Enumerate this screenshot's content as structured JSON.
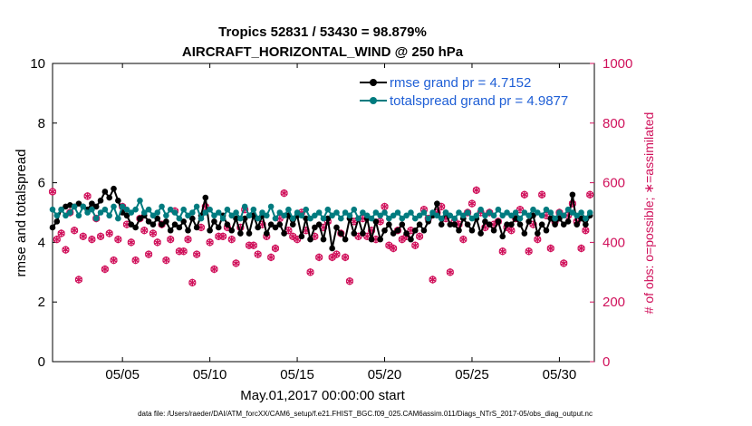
{
  "chart_data": {
    "type": "line",
    "title_line1": "Tropics 52831 / 53430 = 98.879%",
    "title_line2": "AIRCRAFT_HORIZONTAL_WIND @ 250 hPa",
    "xlabel": "May.01,2017 00:00:00 start",
    "ylabel": "rmse and totalspread",
    "ylabel_right": "# of obs: o=possible; ∗=assimilated",
    "x_tick_labels": [
      "05/05",
      "05/10",
      "05/15",
      "05/20",
      "05/25",
      "05/30"
    ],
    "x_tick_days": [
      5,
      10,
      15,
      20,
      25,
      30
    ],
    "xlim": [
      1,
      32
    ],
    "ylim": [
      0,
      10
    ],
    "y_ticks": [
      "0",
      "2",
      "4",
      "6",
      "8",
      "10"
    ],
    "y_right_lim": [
      0,
      1000
    ],
    "y_right_ticks": [
      "0",
      "200",
      "400",
      "600",
      "800",
      "1000"
    ],
    "legend": {
      "rmse_label": "rmse grand pr = 4.7152",
      "spread_label": "totalspread grand pr = 4.9877",
      "placement": "top-right"
    },
    "colors": {
      "rmse": "#000000",
      "spread": "#007b7f",
      "obs": "#d0115b",
      "legend_text": "#1f5fd6"
    },
    "series": [
      {
        "name": "rmse",
        "x": [
          1.0,
          1.25,
          1.5,
          1.75,
          2.0,
          2.25,
          2.5,
          2.75,
          3.0,
          3.25,
          3.5,
          3.75,
          4.0,
          4.25,
          4.5,
          4.75,
          5.0,
          5.25,
          5.5,
          5.75,
          6.0,
          6.25,
          6.5,
          6.75,
          7.0,
          7.25,
          7.5,
          7.75,
          8.0,
          8.25,
          8.5,
          8.75,
          9.0,
          9.25,
          9.5,
          9.75,
          10.0,
          10.25,
          10.5,
          10.75,
          11.0,
          11.25,
          11.5,
          11.75,
          12.0,
          12.25,
          12.5,
          12.75,
          13.0,
          13.25,
          13.5,
          13.75,
          14.0,
          14.25,
          14.5,
          14.75,
          15.0,
          15.25,
          15.5,
          15.75,
          16.0,
          16.25,
          16.5,
          16.75,
          17.0,
          17.25,
          17.5,
          17.75,
          18.0,
          18.25,
          18.5,
          18.75,
          19.0,
          19.25,
          19.5,
          19.75,
          20.0,
          20.25,
          20.5,
          20.75,
          21.0,
          21.25,
          21.5,
          21.75,
          22.0,
          22.25,
          22.5,
          22.75,
          23.0,
          23.25,
          23.5,
          23.75,
          24.0,
          24.25,
          24.5,
          24.75,
          25.0,
          25.25,
          25.5,
          25.75,
          26.0,
          26.25,
          26.5,
          26.75,
          27.0,
          27.25,
          27.5,
          27.75,
          28.0,
          28.25,
          28.5,
          28.75,
          29.0,
          29.25,
          29.5,
          29.75,
          30.0,
          30.25,
          30.5,
          30.75,
          31.0,
          31.25,
          31.5,
          31.75
        ],
        "values": [
          4.5,
          4.7,
          5.1,
          5.2,
          5.25,
          5.2,
          5.3,
          5.2,
          5.1,
          5.3,
          5.2,
          5.4,
          5.7,
          5.5,
          5.8,
          5.4,
          5.0,
          4.9,
          4.6,
          4.5,
          4.8,
          4.9,
          4.7,
          4.6,
          4.8,
          4.6,
          4.7,
          4.4,
          4.6,
          4.5,
          4.7,
          4.4,
          4.8,
          4.5,
          4.9,
          5.5,
          4.4,
          4.7,
          4.5,
          4.9,
          4.6,
          4.4,
          4.8,
          4.3,
          4.8,
          4.3,
          4.9,
          4.5,
          4.9,
          4.3,
          4.6,
          4.5,
          4.6,
          4.3,
          4.9,
          4.6,
          4.9,
          4.2,
          4.8,
          4.1,
          4.5,
          4.6,
          4.1,
          4.8,
          3.8,
          4.5,
          4.3,
          4.1,
          4.8,
          4.3,
          4.8,
          4.3,
          4.8,
          4.1,
          4.7,
          4.1,
          4.4,
          4.6,
          4.3,
          4.4,
          4.6,
          4.3,
          4.1,
          4.4,
          4.6,
          4.4,
          4.7,
          4.9,
          5.3,
          4.6,
          5.0,
          4.6,
          4.6,
          4.4,
          4.8,
          4.6,
          4.4,
          4.8,
          4.3,
          4.7,
          4.6,
          4.4,
          4.7,
          4.2,
          4.6,
          4.6,
          4.8,
          4.6,
          4.3,
          4.7,
          4.9,
          4.3,
          4.6,
          4.4,
          4.8,
          4.6,
          4.8,
          4.6,
          4.7,
          5.6,
          4.6,
          4.8,
          4.6,
          4.9
        ]
      },
      {
        "name": "totalspread",
        "x": [
          1.0,
          1.25,
          1.5,
          1.75,
          2.0,
          2.25,
          2.5,
          2.75,
          3.0,
          3.25,
          3.5,
          3.75,
          4.0,
          4.25,
          4.5,
          4.75,
          5.0,
          5.25,
          5.5,
          5.75,
          6.0,
          6.25,
          6.5,
          6.75,
          7.0,
          7.25,
          7.5,
          7.75,
          8.0,
          8.25,
          8.5,
          8.75,
          9.0,
          9.25,
          9.5,
          9.75,
          10.0,
          10.25,
          10.5,
          10.75,
          11.0,
          11.25,
          11.5,
          11.75,
          12.0,
          12.25,
          12.5,
          12.75,
          13.0,
          13.25,
          13.5,
          13.75,
          14.0,
          14.25,
          14.5,
          14.75,
          15.0,
          15.25,
          15.5,
          15.75,
          16.0,
          16.25,
          16.5,
          16.75,
          17.0,
          17.25,
          17.5,
          17.75,
          18.0,
          18.25,
          18.5,
          18.75,
          19.0,
          19.25,
          19.5,
          19.75,
          20.0,
          20.25,
          20.5,
          20.75,
          21.0,
          21.25,
          21.5,
          21.75,
          22.0,
          22.25,
          22.5,
          22.75,
          23.0,
          23.25,
          23.5,
          23.75,
          24.0,
          24.25,
          24.5,
          24.75,
          25.0,
          25.25,
          25.5,
          25.75,
          26.0,
          26.25,
          26.5,
          26.75,
          27.0,
          27.25,
          27.5,
          27.75,
          28.0,
          28.25,
          28.5,
          28.75,
          29.0,
          29.25,
          29.5,
          29.75,
          30.0,
          30.25,
          30.5,
          30.75,
          31.0,
          31.25,
          31.5,
          31.75
        ],
        "values": [
          5.1,
          4.9,
          5.1,
          4.9,
          5.0,
          5.2,
          4.9,
          5.2,
          5.0,
          5.1,
          4.8,
          5.0,
          5.1,
          4.9,
          5.2,
          4.8,
          5.2,
          5.1,
          5.0,
          5.1,
          5.4,
          5.0,
          5.1,
          4.9,
          5.0,
          5.2,
          4.9,
          5.1,
          5.0,
          4.8,
          5.1,
          4.9,
          5.0,
          5.2,
          4.8,
          5.0,
          5.1,
          4.9,
          5.0,
          4.8,
          5.1,
          4.9,
          5.0,
          4.8,
          5.2,
          4.9,
          5.1,
          4.8,
          5.0,
          4.9,
          5.2,
          4.8,
          5.0,
          4.9,
          5.1,
          4.8,
          5.0,
          4.9,
          5.1,
          4.8,
          4.9,
          5.0,
          4.8,
          5.1,
          4.9,
          5.0,
          4.8,
          5.0,
          4.9,
          5.1,
          4.8,
          5.0,
          4.9,
          4.8,
          5.0,
          4.9,
          5.0,
          4.8,
          4.9,
          5.0,
          4.8,
          4.9,
          5.0,
          4.8,
          4.9,
          5.0,
          4.8,
          5.0,
          4.9,
          4.8,
          5.0,
          4.9,
          4.8,
          5.0,
          4.9,
          5.0,
          4.8,
          4.9,
          5.1,
          4.9,
          5.0,
          4.9,
          5.1,
          4.9,
          5.0,
          4.9,
          5.0,
          4.8,
          5.0,
          4.9,
          5.1,
          5.0,
          4.9,
          5.1,
          5.0,
          4.8,
          5.0,
          4.9,
          5.1,
          5.0,
          4.9,
          5.0,
          4.8,
          5.0
        ]
      },
      {
        "name": "obs_count",
        "axis": "right",
        "x": [
          1.0,
          1.25,
          1.5,
          1.75,
          2.0,
          2.25,
          2.5,
          2.75,
          3.0,
          3.25,
          3.5,
          3.75,
          4.0,
          4.25,
          4.5,
          4.75,
          5.0,
          5.25,
          5.5,
          5.75,
          6.0,
          6.25,
          6.5,
          6.75,
          7.0,
          7.25,
          7.5,
          7.75,
          8.0,
          8.25,
          8.5,
          8.75,
          9.0,
          9.25,
          9.5,
          9.75,
          10.0,
          10.25,
          10.5,
          10.75,
          11.0,
          11.25,
          11.5,
          11.75,
          12.0,
          12.25,
          12.5,
          12.75,
          13.0,
          13.25,
          13.5,
          13.75,
          14.0,
          14.25,
          14.5,
          14.75,
          15.0,
          15.25,
          15.5,
          15.75,
          16.0,
          16.25,
          16.5,
          16.75,
          17.0,
          17.25,
          17.5,
          17.75,
          18.0,
          18.25,
          18.5,
          18.75,
          19.0,
          19.25,
          19.5,
          19.75,
          20.0,
          20.25,
          20.5,
          20.75,
          21.0,
          21.25,
          21.5,
          21.75,
          22.0,
          22.25,
          22.5,
          22.75,
          23.0,
          23.25,
          23.5,
          23.75,
          24.0,
          24.25,
          24.5,
          24.75,
          25.0,
          25.25,
          25.5,
          25.75,
          26.0,
          26.25,
          26.5,
          26.75,
          27.0,
          27.25,
          27.5,
          27.75,
          28.0,
          28.25,
          28.5,
          28.75,
          29.0,
          29.25,
          29.5,
          29.75,
          30.0,
          30.25,
          30.5,
          30.75,
          31.0,
          31.25,
          31.5,
          31.75
        ],
        "values": [
          570,
          410,
          430,
          375,
          500,
          440,
          275,
          420,
          555,
          410,
          480,
          420,
          310,
          430,
          340,
          410,
          520,
          460,
          400,
          340,
          480,
          440,
          360,
          430,
          400,
          460,
          340,
          410,
          505,
          370,
          370,
          410,
          265,
          360,
          450,
          520,
          400,
          310,
          420,
          420,
          450,
          410,
          330,
          450,
          510,
          390,
          390,
          360,
          460,
          420,
          350,
          380,
          480,
          565,
          440,
          420,
          410,
          500,
          440,
          300,
          420,
          350,
          450,
          470,
          350,
          360,
          430,
          350,
          270,
          470,
          420,
          480,
          420,
          440,
          410,
          470,
          520,
          390,
          380,
          440,
          410,
          420,
          440,
          390,
          420,
          510,
          480,
          275,
          500,
          520,
          480,
          300,
          470,
          460,
          410,
          500,
          530,
          575,
          500,
          450,
          500,
          460,
          470,
          370,
          450,
          440,
          480,
          510,
          560,
          370,
          460,
          410,
          560,
          490,
          380,
          470,
          500,
          330,
          490,
          530,
          470,
          380,
          440,
          560
        ]
      }
    ],
    "footer": "data file: /Users/raeder/DAI/ATM_forcXX/CAM6_setup/f.e21.FHIST_BGC.f09_025.CAM6assim.011/Diags_NTrS_2017-05/obs_diag_output.nc"
  }
}
